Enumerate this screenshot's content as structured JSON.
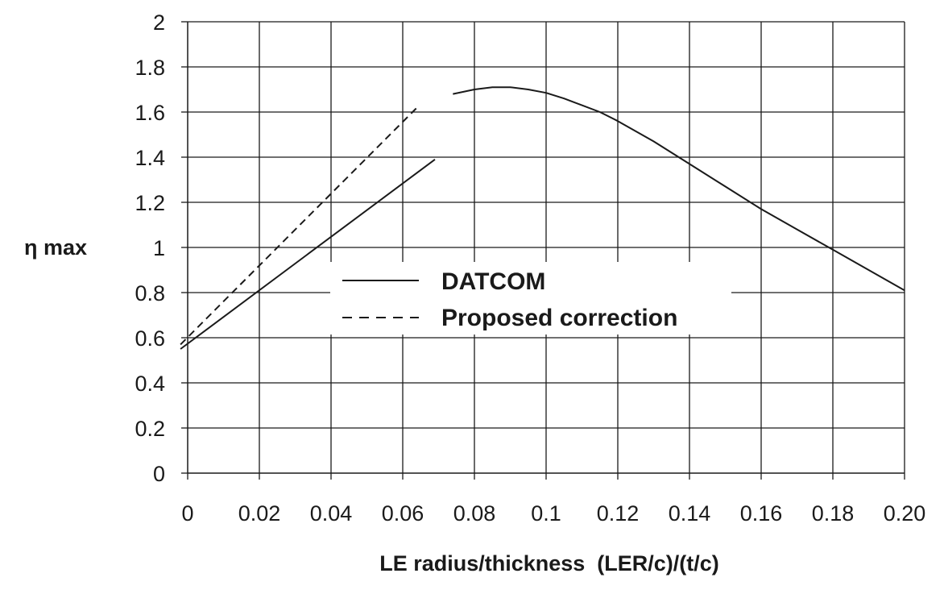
{
  "chart_data": {
    "type": "line",
    "title": "",
    "xlabel": "LE radius/thickness  (LER/c)/(t/c)",
    "ylabel": "η max",
    "xlim": [
      0,
      0.2
    ],
    "ylim": [
      0,
      2
    ],
    "x_ticks": [
      "0",
      "0.02",
      "0.04",
      "0.06",
      "0.08",
      "0.1",
      "0.12",
      "0.14",
      "0.16",
      "0.18",
      "0.20"
    ],
    "y_ticks": [
      "0",
      "0.2",
      "0.4",
      "0.6",
      "0.8",
      "1",
      "1.2",
      "1.4",
      "1.6",
      "1.8",
      "2"
    ],
    "grid": true,
    "legend_position": "center",
    "series": [
      {
        "name": "DATCOM",
        "style": "solid",
        "segments": [
          {
            "x": [
              -0.002,
              0.069
            ],
            "y": [
              0.55,
              1.39
            ]
          },
          {
            "x": [
              0.074,
              0.08,
              0.085,
              0.09,
              0.095,
              0.1,
              0.105,
              0.11,
              0.115,
              0.12,
              0.13,
              0.14,
              0.15,
              0.16,
              0.17,
              0.18,
              0.19,
              0.2
            ],
            "y": [
              1.68,
              1.7,
              1.71,
              1.71,
              1.7,
              1.685,
              1.66,
              1.63,
              1.6,
              1.56,
              1.47,
              1.37,
              1.27,
              1.17,
              1.08,
              0.99,
              0.9,
              0.81
            ]
          }
        ]
      },
      {
        "name": "Proposed correction",
        "style": "dashed",
        "segments": [
          {
            "x": [
              -0.002,
              0.064
            ],
            "y": [
              0.57,
              1.62
            ]
          }
        ]
      }
    ]
  }
}
